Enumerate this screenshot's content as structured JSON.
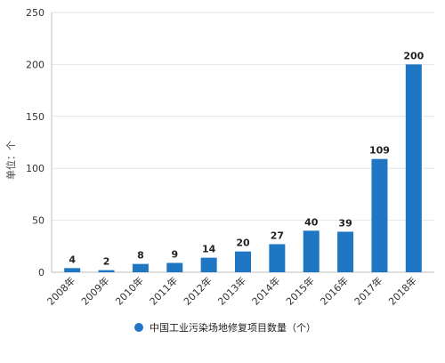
{
  "chart_data": {
    "type": "bar",
    "categories": [
      "2008年",
      "2009年",
      "2010年",
      "2011年",
      "2012年",
      "2013年",
      "2014年",
      "2015年",
      "2016年",
      "2017年",
      "2018年"
    ],
    "series": [
      {
        "name": "中国工业污染场地修复项目数量（个）",
        "values": [
          4,
          2,
          8,
          9,
          14,
          20,
          27,
          40,
          39,
          109,
          200
        ]
      }
    ],
    "ylabel": "单位：个",
    "ylim": [
      0,
      250
    ],
    "yticks": [
      0,
      50,
      100,
      150,
      200,
      250
    ],
    "grid": "horizontal",
    "legend_position": "bottom",
    "colors": {
      "bar": "#1f77c4",
      "grid": "#e6e6e6",
      "axis": "#bfbfbf"
    }
  }
}
